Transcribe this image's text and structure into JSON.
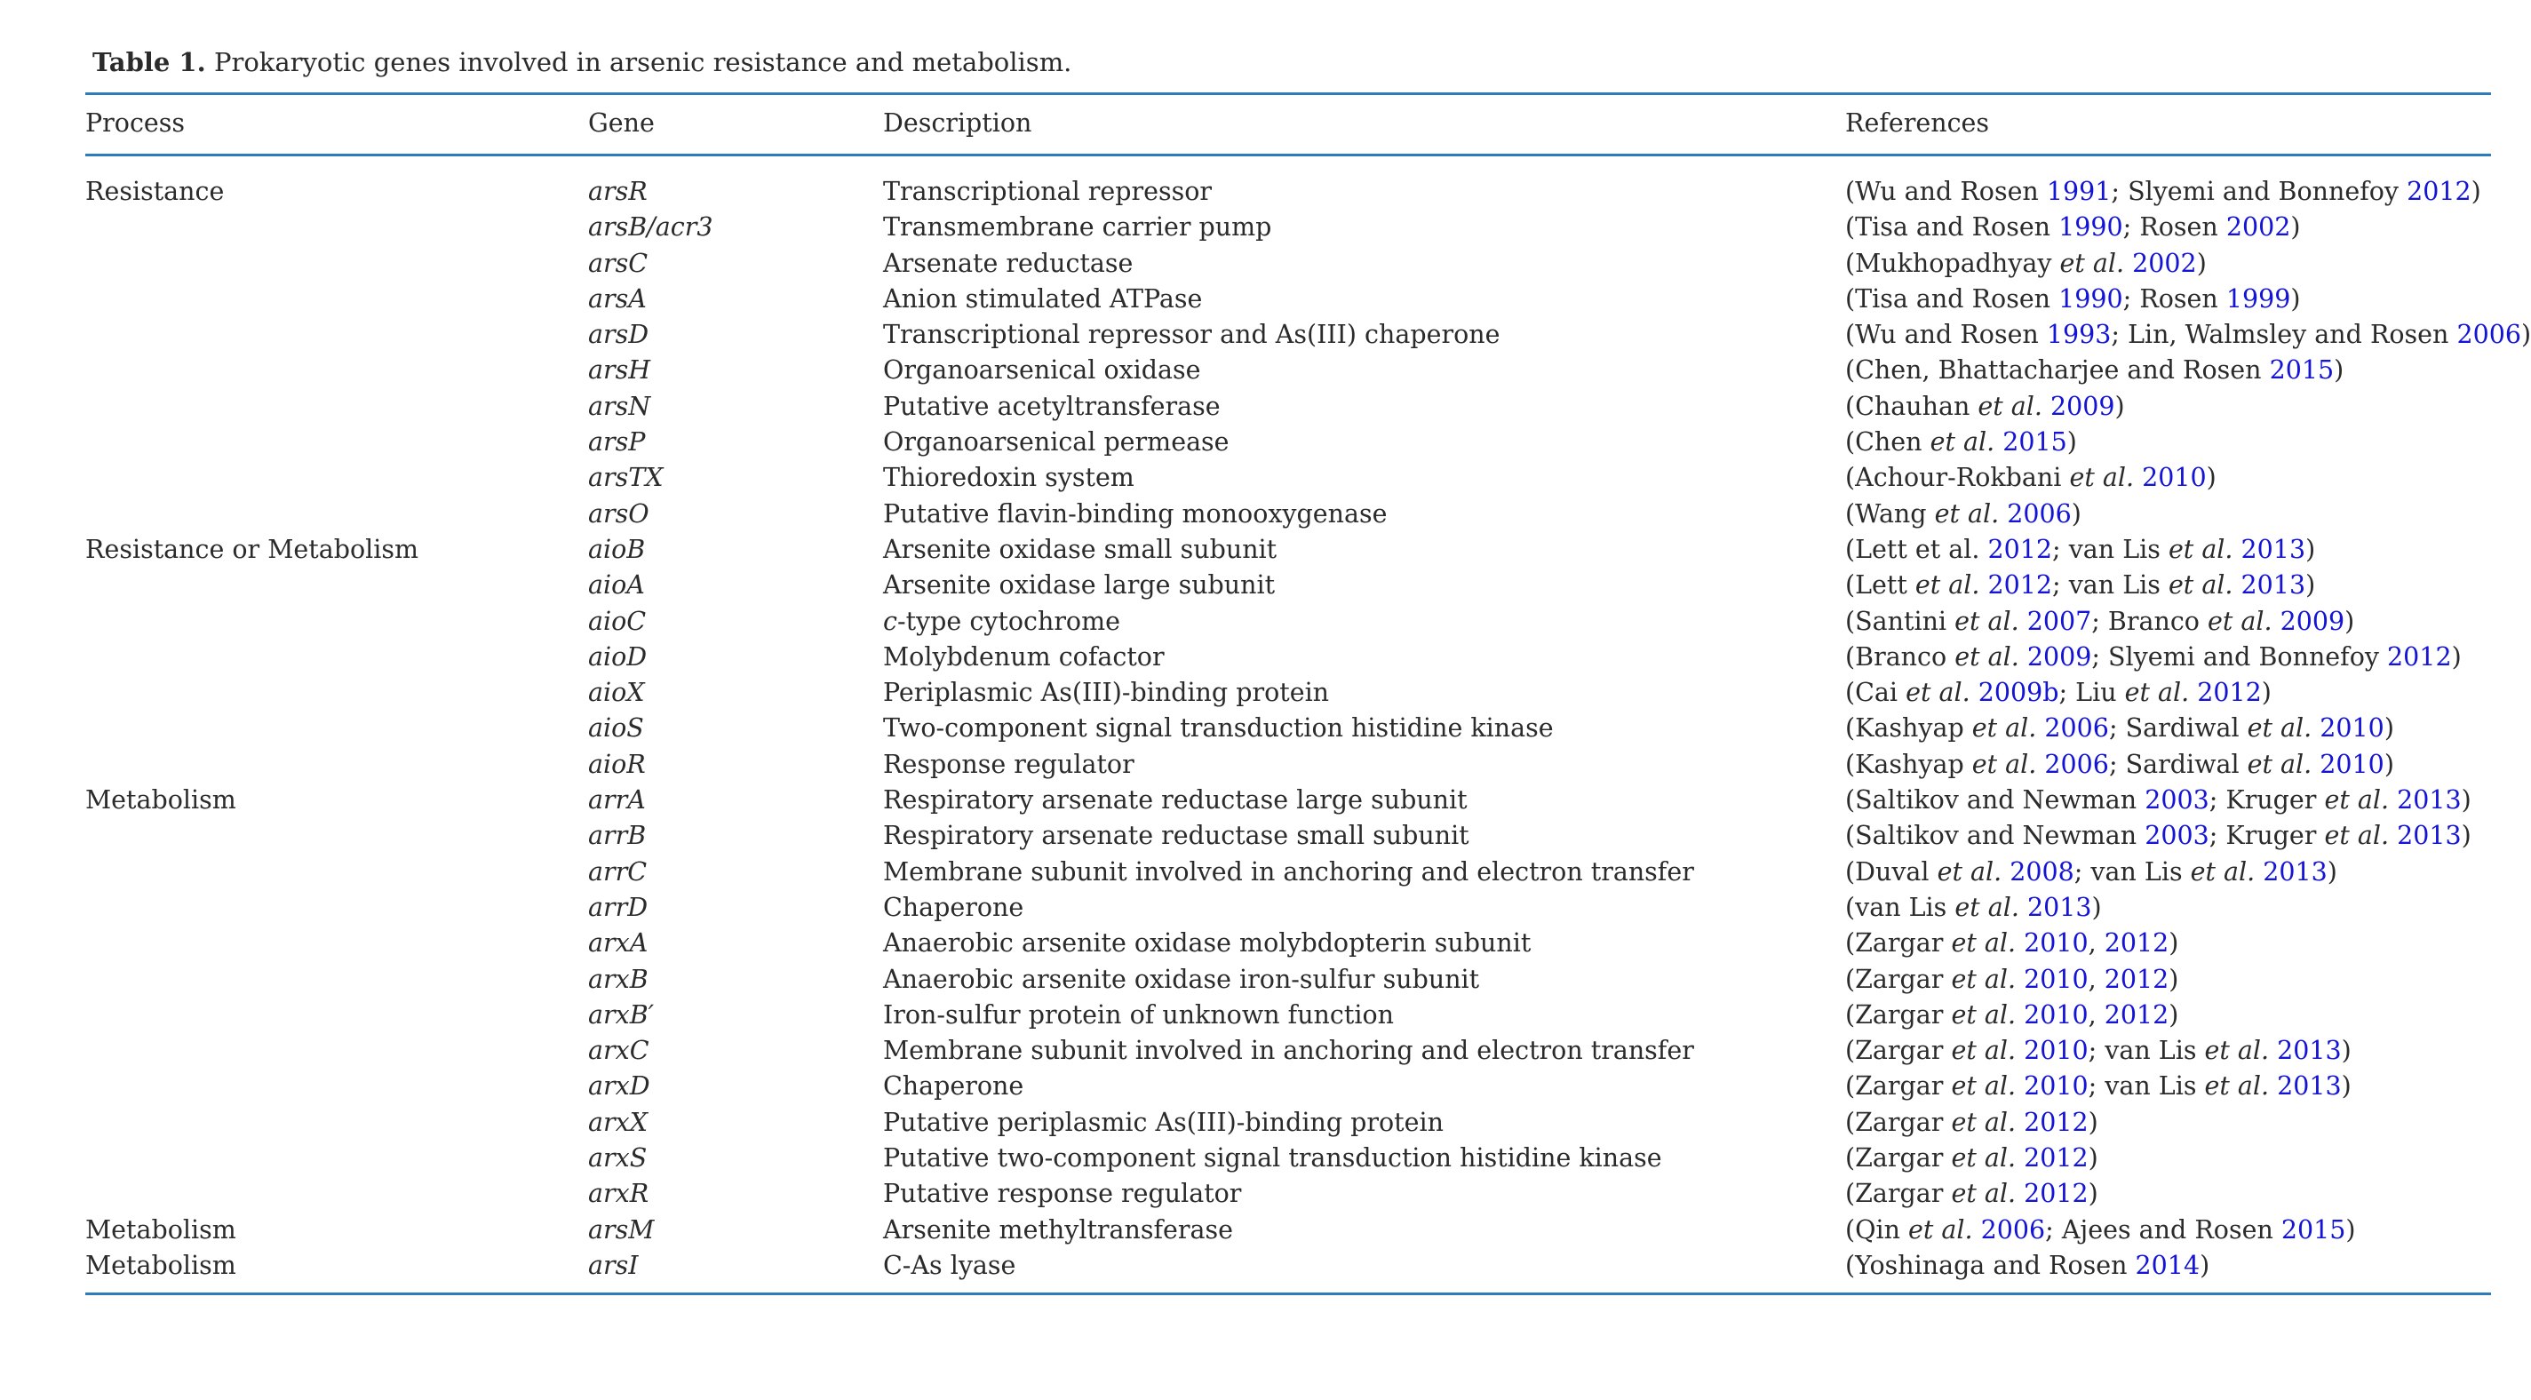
{
  "caption": {
    "label": "Table 1.",
    "text": "Prokaryotic genes involved in arsenic resistance and metabolism."
  },
  "headers": {
    "process": "Process",
    "gene": "Gene",
    "description": "Description",
    "references": "References"
  },
  "colors": {
    "rule": "#2b7bbd",
    "link": "#1414d6",
    "text": "#2b2b2b"
  },
  "rows": [
    {
      "process": "Resistance",
      "gene": "arsR",
      "description": "Transcriptional repressor",
      "refs": [
        [
          {
            "t": "Wu and Rosen "
          },
          {
            "t": "1991",
            "link": true
          }
        ],
        [
          {
            "t": "Slyemi and Bonnefoy "
          },
          {
            "t": "2012",
            "link": true
          }
        ]
      ]
    },
    {
      "process": "",
      "gene": "arsB/acr3",
      "description": "Transmembrane carrier pump",
      "refs": [
        [
          {
            "t": "Tisa and Rosen "
          },
          {
            "t": "1990",
            "link": true
          }
        ],
        [
          {
            "t": "Rosen "
          },
          {
            "t": "2002",
            "link": true
          }
        ]
      ]
    },
    {
      "process": "",
      "gene": "arsC",
      "description": "Arsenate reductase",
      "refs": [
        [
          {
            "t": "Mukhopadhyay "
          },
          {
            "t": "et al.",
            "i": true
          },
          {
            "t": " "
          },
          {
            "t": "2002",
            "link": true
          }
        ]
      ]
    },
    {
      "process": "",
      "gene": "arsA",
      "description": "Anion stimulated ATPase",
      "refs": [
        [
          {
            "t": "Tisa and Rosen "
          },
          {
            "t": "1990",
            "link": true
          }
        ],
        [
          {
            "t": "Rosen "
          },
          {
            "t": "1999",
            "link": true
          }
        ]
      ]
    },
    {
      "process": "",
      "gene": "arsD",
      "description": "Transcriptional repressor and As(III) chaperone",
      "refs": [
        [
          {
            "t": "Wu and Rosen "
          },
          {
            "t": "1993",
            "link": true
          }
        ],
        [
          {
            "t": "Lin, Walmsley and Rosen "
          },
          {
            "t": "2006",
            "link": true
          }
        ]
      ]
    },
    {
      "process": "",
      "gene": "arsH",
      "description": "Organoarsenical oxidase",
      "refs": [
        [
          {
            "t": "Chen, Bhattacharjee and Rosen "
          },
          {
            "t": "2015",
            "link": true
          }
        ]
      ]
    },
    {
      "process": "",
      "gene": "arsN",
      "description": "Putative acetyltransferase",
      "refs": [
        [
          {
            "t": "Chauhan "
          },
          {
            "t": "et al.",
            "i": true
          },
          {
            "t": " "
          },
          {
            "t": "2009",
            "link": true
          }
        ]
      ]
    },
    {
      "process": "",
      "gene": "arsP",
      "description": "Organoarsenical permease",
      "refs": [
        [
          {
            "t": "Chen "
          },
          {
            "t": "et al.",
            "i": true
          },
          {
            "t": " "
          },
          {
            "t": "2015",
            "link": true
          }
        ]
      ]
    },
    {
      "process": "",
      "gene": "arsTX",
      "description": "Thioredoxin system",
      "refs": [
        [
          {
            "t": "Achour-Rokbani "
          },
          {
            "t": "et al.",
            "i": true
          },
          {
            "t": " "
          },
          {
            "t": "2010",
            "link": true
          }
        ]
      ]
    },
    {
      "process": "",
      "gene": "arsO",
      "description": "Putative flavin-binding monooxygenase",
      "refs": [
        [
          {
            "t": "Wang "
          },
          {
            "t": "et al.",
            "i": true
          },
          {
            "t": " "
          },
          {
            "t": "2006",
            "link": true
          }
        ]
      ]
    },
    {
      "process": "Resistance or Metabolism",
      "gene": "aioB",
      "description": "Arsenite oxidase small subunit",
      "refs": [
        [
          {
            "t": "Lett et al. "
          },
          {
            "t": "2012",
            "link": true
          }
        ],
        [
          {
            "t": "van Lis "
          },
          {
            "t": "et al.",
            "i": true
          },
          {
            "t": " "
          },
          {
            "t": "2013",
            "link": true
          }
        ]
      ]
    },
    {
      "process": "",
      "gene": "aioA",
      "description": "Arsenite oxidase large subunit",
      "refs": [
        [
          {
            "t": "Lett "
          },
          {
            "t": "et al.",
            "i": true
          },
          {
            "t": " "
          },
          {
            "t": "2012",
            "link": true
          }
        ],
        [
          {
            "t": "van Lis "
          },
          {
            "t": "et al.",
            "i": true
          },
          {
            "t": " "
          },
          {
            "t": "2013",
            "link": true
          }
        ]
      ]
    },
    {
      "process": "",
      "gene": "aioC",
      "description": "c-type cytochrome",
      "descItalicPrefix": "c",
      "refs": [
        [
          {
            "t": "Santini "
          },
          {
            "t": "et al.",
            "i": true
          },
          {
            "t": " "
          },
          {
            "t": "2007",
            "link": true
          }
        ],
        [
          {
            "t": "Branco "
          },
          {
            "t": "et al.",
            "i": true
          },
          {
            "t": " "
          },
          {
            "t": "2009",
            "link": true
          }
        ]
      ]
    },
    {
      "process": "",
      "gene": "aioD",
      "description": "Molybdenum cofactor",
      "refs": [
        [
          {
            "t": "Branco "
          },
          {
            "t": "et al.",
            "i": true
          },
          {
            "t": " "
          },
          {
            "t": "2009",
            "link": true
          }
        ],
        [
          {
            "t": "Slyemi and Bonnefoy "
          },
          {
            "t": "2012",
            "link": true
          }
        ]
      ]
    },
    {
      "process": "",
      "gene": "aioX",
      "description": "Periplasmic As(III)-binding protein",
      "refs": [
        [
          {
            "t": "Cai "
          },
          {
            "t": "et al.",
            "i": true
          },
          {
            "t": " "
          },
          {
            "t": "2009b",
            "link": true
          }
        ],
        [
          {
            "t": "Liu "
          },
          {
            "t": "et al.",
            "i": true
          },
          {
            "t": " "
          },
          {
            "t": "2012",
            "link": true
          }
        ]
      ]
    },
    {
      "process": "",
      "gene": "aioS",
      "description": "Two-component signal transduction histidine kinase",
      "refs": [
        [
          {
            "t": "Kashyap "
          },
          {
            "t": "et al.",
            "i": true
          },
          {
            "t": " "
          },
          {
            "t": "2006",
            "link": true
          }
        ],
        [
          {
            "t": "Sardiwal "
          },
          {
            "t": "et al.",
            "i": true
          },
          {
            "t": " "
          },
          {
            "t": "2010",
            "link": true
          }
        ]
      ]
    },
    {
      "process": "",
      "gene": "aioR",
      "description": "Response regulator",
      "refs": [
        [
          {
            "t": "Kashyap "
          },
          {
            "t": "et al.",
            "i": true
          },
          {
            "t": " "
          },
          {
            "t": "2006",
            "link": true
          }
        ],
        [
          {
            "t": "Sardiwal "
          },
          {
            "t": "et al.",
            "i": true
          },
          {
            "t": " "
          },
          {
            "t": "2010",
            "link": true
          }
        ]
      ]
    },
    {
      "process": "Metabolism",
      "gene": "arrA",
      "description": "Respiratory arsenate reductase large subunit",
      "refs": [
        [
          {
            "t": "Saltikov and Newman "
          },
          {
            "t": "2003",
            "link": true
          }
        ],
        [
          {
            "t": "Kruger "
          },
          {
            "t": "et al.",
            "i": true
          },
          {
            "t": " "
          },
          {
            "t": "2013",
            "link": true
          }
        ]
      ]
    },
    {
      "process": "",
      "gene": "arrB",
      "description": "Respiratory arsenate reductase small subunit",
      "refs": [
        [
          {
            "t": "Saltikov and Newman "
          },
          {
            "t": "2003",
            "link": true
          }
        ],
        [
          {
            "t": "Kruger "
          },
          {
            "t": "et al.",
            "i": true
          },
          {
            "t": " "
          },
          {
            "t": "2013",
            "link": true
          }
        ]
      ]
    },
    {
      "process": "",
      "gene": "arrC",
      "description": "Membrane subunit involved in anchoring and electron transfer",
      "refs": [
        [
          {
            "t": "Duval "
          },
          {
            "t": "et al.",
            "i": true
          },
          {
            "t": " "
          },
          {
            "t": "2008",
            "link": true
          }
        ],
        [
          {
            "t": "van Lis "
          },
          {
            "t": "et al.",
            "i": true
          },
          {
            "t": " "
          },
          {
            "t": "2013",
            "link": true
          }
        ]
      ]
    },
    {
      "process": "",
      "gene": "arrD",
      "description": "Chaperone",
      "refs": [
        [
          {
            "t": "van Lis "
          },
          {
            "t": "et al.",
            "i": true
          },
          {
            "t": " "
          },
          {
            "t": "2013",
            "link": true
          }
        ]
      ]
    },
    {
      "process": "",
      "gene": "arxA",
      "description": "Anaerobic arsenite oxidase molybdopterin subunit",
      "refs": [
        [
          {
            "t": "Zargar "
          },
          {
            "t": "et al.",
            "i": true
          },
          {
            "t": " "
          },
          {
            "t": "2010",
            "link": true
          },
          {
            "t": ", "
          },
          {
            "t": "2012",
            "link": true
          }
        ]
      ]
    },
    {
      "process": "",
      "gene": "arxB",
      "description": "Anaerobic arsenite oxidase iron-sulfur subunit",
      "refs": [
        [
          {
            "t": "Zargar "
          },
          {
            "t": "et al.",
            "i": true
          },
          {
            "t": " "
          },
          {
            "t": "2010",
            "link": true
          },
          {
            "t": ", "
          },
          {
            "t": "2012",
            "link": true
          }
        ]
      ]
    },
    {
      "process": "",
      "gene": "arxB′",
      "description": "Iron-sulfur protein of unknown function",
      "refs": [
        [
          {
            "t": "Zargar "
          },
          {
            "t": "et al.",
            "i": true
          },
          {
            "t": " "
          },
          {
            "t": "2010",
            "link": true
          },
          {
            "t": ", "
          },
          {
            "t": "2012",
            "link": true
          }
        ]
      ]
    },
    {
      "process": "",
      "gene": "arxC",
      "description": "Membrane subunit involved in anchoring and electron transfer",
      "refs": [
        [
          {
            "t": "Zargar "
          },
          {
            "t": "et al.",
            "i": true
          },
          {
            "t": " "
          },
          {
            "t": "2010",
            "link": true
          }
        ],
        [
          {
            "t": "van Lis "
          },
          {
            "t": "et al.",
            "i": true
          },
          {
            "t": " "
          },
          {
            "t": "2013",
            "link": true
          }
        ]
      ]
    },
    {
      "process": "",
      "gene": "arxD",
      "description": "Chaperone",
      "refs": [
        [
          {
            "t": "Zargar "
          },
          {
            "t": "et al.",
            "i": true
          },
          {
            "t": " "
          },
          {
            "t": "2010",
            "link": true
          }
        ],
        [
          {
            "t": "van Lis "
          },
          {
            "t": "et al.",
            "i": true
          },
          {
            "t": " "
          },
          {
            "t": "2013",
            "link": true
          }
        ]
      ]
    },
    {
      "process": "",
      "gene": "arxX",
      "description": "Putative periplasmic As(III)-binding protein",
      "refs": [
        [
          {
            "t": "Zargar "
          },
          {
            "t": "et al.",
            "i": true
          },
          {
            "t": " "
          },
          {
            "t": "2012",
            "link": true
          }
        ]
      ]
    },
    {
      "process": "",
      "gene": "arxS",
      "description": "Putative two-component signal transduction histidine kinase",
      "refs": [
        [
          {
            "t": "Zargar "
          },
          {
            "t": "et al.",
            "i": true
          },
          {
            "t": " "
          },
          {
            "t": "2012",
            "link": true
          }
        ]
      ]
    },
    {
      "process": "",
      "gene": "arxR",
      "description": "Putative response regulator",
      "refs": [
        [
          {
            "t": "Zargar "
          },
          {
            "t": "et al.",
            "i": true
          },
          {
            "t": " "
          },
          {
            "t": "2012",
            "link": true
          }
        ]
      ]
    },
    {
      "process": "Metabolism",
      "gene": "arsM",
      "description": "Arsenite methyltransferase",
      "refs": [
        [
          {
            "t": "Qin "
          },
          {
            "t": "et al.",
            "i": true
          },
          {
            "t": " "
          },
          {
            "t": "2006",
            "link": true
          }
        ],
        [
          {
            "t": "Ajees and Rosen "
          },
          {
            "t": "2015",
            "link": true
          }
        ]
      ]
    },
    {
      "process": "Metabolism",
      "gene": "arsI",
      "description": "C-As lyase",
      "refs": [
        [
          {
            "t": "Yoshinaga and Rosen "
          },
          {
            "t": "2014",
            "link": true
          }
        ]
      ]
    }
  ]
}
